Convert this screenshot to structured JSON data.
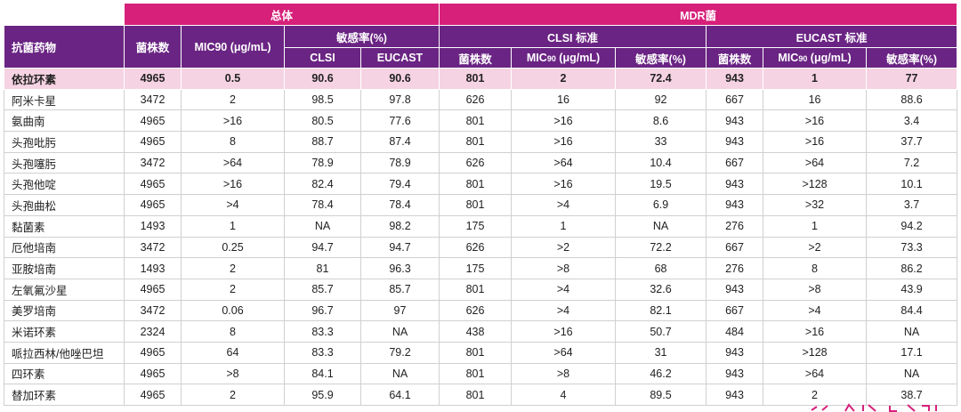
{
  "header": {
    "overall": "总体",
    "mdr": "MDR菌",
    "drug_col": "抗菌药物",
    "count": "菌株数",
    "mic90": "MIC90 (μg/mL)",
    "susceptibility": "敏感率(%)",
    "clsi_standard": "CLSI 标准",
    "eucast_standard": "EUCAST 标准",
    "clsi": "CLSI",
    "eucast": "EUCAST",
    "mdr_clsi_count": "菌株数",
    "mdr_clsi_mic_main": "MIC",
    "mdr_clsi_mic_sub": "90",
    "mdr_clsi_mic_unit": " (μg/mL)",
    "mdr_clsi_rate": "敏感率(%)",
    "mdr_eucast_count": "菌株数",
    "mdr_eucast_mic_main": "MIC",
    "mdr_eucast_mic_sub": "90",
    "mdr_eucast_mic_unit": " (μg/mL)",
    "mdr_eucast_rate": "敏感率(%)"
  },
  "rows": [
    {
      "drug": "依拉环素",
      "count": "4965",
      "mic90": "0.5",
      "clsi": "90.6",
      "eucast": "90.6",
      "mdr_count": "801",
      "mdr_clsi_mic": "2",
      "mdr_clsi_rate": "72.4",
      "mdr_eu_count": "943",
      "mdr_eu_mic": "1",
      "mdr_eu_rate": "77"
    },
    {
      "drug": "阿米卡星",
      "count": "3472",
      "mic90": "2",
      "clsi": "98.5",
      "eucast": "97.8",
      "mdr_count": "626",
      "mdr_clsi_mic": "16",
      "mdr_clsi_rate": "92",
      "mdr_eu_count": "667",
      "mdr_eu_mic": "16",
      "mdr_eu_rate": "88.6"
    },
    {
      "drug": "氨曲南",
      "count": "4965",
      "mic90": ">16",
      "clsi": "80.5",
      "eucast": "77.6",
      "mdr_count": "801",
      "mdr_clsi_mic": ">16",
      "mdr_clsi_rate": "8.6",
      "mdr_eu_count": "943",
      "mdr_eu_mic": ">16",
      "mdr_eu_rate": "3.4"
    },
    {
      "drug": "头孢吡肟",
      "count": "4965",
      "mic90": "8",
      "clsi": "88.7",
      "eucast": "87.4",
      "mdr_count": "801",
      "mdr_clsi_mic": ">16",
      "mdr_clsi_rate": "33",
      "mdr_eu_count": "943",
      "mdr_eu_mic": ">16",
      "mdr_eu_rate": "37.7"
    },
    {
      "drug": "头孢噻肟",
      "count": "3472",
      "mic90": ">64",
      "clsi": "78.9",
      "eucast": "78.9",
      "mdr_count": "626",
      "mdr_clsi_mic": ">64",
      "mdr_clsi_rate": "10.4",
      "mdr_eu_count": "667",
      "mdr_eu_mic": ">64",
      "mdr_eu_rate": "7.2"
    },
    {
      "drug": "头孢他啶",
      "count": "4965",
      "mic90": ">16",
      "clsi": "82.4",
      "eucast": "79.4",
      "mdr_count": "801",
      "mdr_clsi_mic": ">16",
      "mdr_clsi_rate": "19.5",
      "mdr_eu_count": "943",
      "mdr_eu_mic": ">128",
      "mdr_eu_rate": "10.1"
    },
    {
      "drug": "头孢曲松",
      "count": "4965",
      "mic90": ">4",
      "clsi": "78.4",
      "eucast": "78.4",
      "mdr_count": "801",
      "mdr_clsi_mic": ">4",
      "mdr_clsi_rate": "6.9",
      "mdr_eu_count": "943",
      "mdr_eu_mic": ">32",
      "mdr_eu_rate": "3.7"
    },
    {
      "drug": "黏菌素",
      "count": "1493",
      "mic90": "1",
      "clsi": "NA",
      "eucast": "98.2",
      "mdr_count": "175",
      "mdr_clsi_mic": "1",
      "mdr_clsi_rate": "NA",
      "mdr_eu_count": "276",
      "mdr_eu_mic": "1",
      "mdr_eu_rate": "94.2"
    },
    {
      "drug": "厄他培南",
      "count": "3472",
      "mic90": "0.25",
      "clsi": "94.7",
      "eucast": "94.7",
      "mdr_count": "626",
      "mdr_clsi_mic": ">2",
      "mdr_clsi_rate": "72.2",
      "mdr_eu_count": "667",
      "mdr_eu_mic": ">2",
      "mdr_eu_rate": "73.3"
    },
    {
      "drug": "亚胺培南",
      "count": "1493",
      "mic90": "2",
      "clsi": "81",
      "eucast": "96.3",
      "mdr_count": "175",
      "mdr_clsi_mic": ">8",
      "mdr_clsi_rate": "68",
      "mdr_eu_count": "276",
      "mdr_eu_mic": "8",
      "mdr_eu_rate": "86.2"
    },
    {
      "drug": "左氧氟沙星",
      "count": "4965",
      "mic90": "2",
      "clsi": "85.7",
      "eucast": "85.7",
      "mdr_count": "801",
      "mdr_clsi_mic": ">4",
      "mdr_clsi_rate": "32.6",
      "mdr_eu_count": "943",
      "mdr_eu_mic": ">8",
      "mdr_eu_rate": "43.9"
    },
    {
      "drug": "美罗培南",
      "count": "3472",
      "mic90": "0.06",
      "clsi": "96.7",
      "eucast": "97",
      "mdr_count": "626",
      "mdr_clsi_mic": ">4",
      "mdr_clsi_rate": "82.1",
      "mdr_eu_count": "667",
      "mdr_eu_mic": ">4",
      "mdr_eu_rate": "84.4"
    },
    {
      "drug": "米诺环素",
      "count": "2324",
      "mic90": "8",
      "clsi": "83.3",
      "eucast": "NA",
      "mdr_count": "438",
      "mdr_clsi_mic": ">16",
      "mdr_clsi_rate": "50.7",
      "mdr_eu_count": "484",
      "mdr_eu_mic": ">16",
      "mdr_eu_rate": "NA"
    },
    {
      "drug": "哌拉西林/他唑巴坦",
      "count": "4965",
      "mic90": "64",
      "clsi": "83.3",
      "eucast": "79.2",
      "mdr_count": "801",
      "mdr_clsi_mic": ">64",
      "mdr_clsi_rate": "31",
      "mdr_eu_count": "943",
      "mdr_eu_mic": ">128",
      "mdr_eu_rate": "17.1"
    },
    {
      "drug": "四环素",
      "count": "4965",
      "mic90": ">8",
      "clsi": "84.1",
      "eucast": "NA",
      "mdr_count": "801",
      "mdr_clsi_mic": ">8",
      "mdr_clsi_rate": "46.2",
      "mdr_eu_count": "943",
      "mdr_eu_mic": ">64",
      "mdr_eu_rate": "NA"
    },
    {
      "drug": "替加环素",
      "count": "4965",
      "mic90": "2",
      "clsi": "95.9",
      "eucast": "64.1",
      "mdr_count": "801",
      "mdr_clsi_mic": "4",
      "mdr_clsi_rate": "89.5",
      "mdr_eu_count": "943",
      "mdr_eu_mic": "2",
      "mdr_eu_rate": "38.7"
    }
  ],
  "colors": {
    "magenta": "#d6207a",
    "purple": "#6a2483",
    "highlight": "#f6d3e2"
  }
}
